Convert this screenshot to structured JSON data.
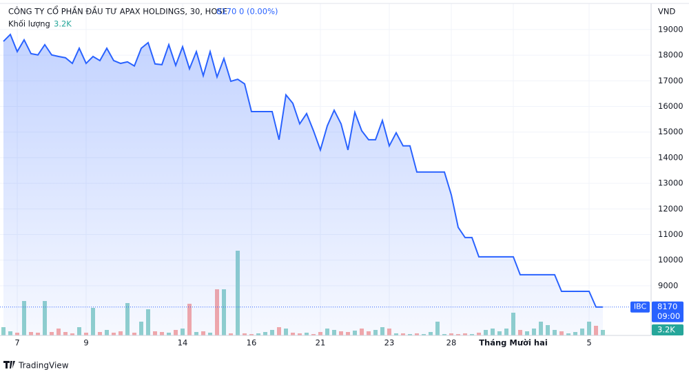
{
  "chart_data": {
    "type": "line",
    "title": "CÔNG TY CỔ PHẦN ĐẦU TƯ APAX HOLDINGS, 30, HOSE",
    "change_label": "0 (0.00%)",
    "currency": "VND",
    "symbol": "IBC",
    "time_label": "09:00",
    "brand": "TradingView",
    "categories": [
      null,
      null,
      "7",
      null,
      null,
      null,
      null,
      null,
      null,
      null,
      null,
      null,
      "9",
      null,
      null,
      null,
      null,
      null,
      null,
      null,
      null,
      null,
      null,
      null,
      null,
      null,
      "14",
      null,
      null,
      null,
      null,
      null,
      null,
      null,
      null,
      null,
      "16",
      null,
      null,
      null,
      null,
      null,
      null,
      null,
      null,
      null,
      "21",
      null,
      null,
      null,
      null,
      null,
      null,
      null,
      null,
      null,
      "23",
      null,
      null,
      null,
      null,
      null,
      null,
      null,
      null,
      "28",
      null,
      null,
      null,
      null,
      null,
      null,
      null,
      null,
      "Tháng Mười hai",
      null,
      null,
      null,
      null,
      null,
      null,
      null,
      null,
      null,
      null,
      "5",
      null,
      null
    ],
    "series": [
      {
        "name": "IBC",
        "color": "#2962ff",
        "values": [
          18540,
          18810,
          18140,
          18600,
          18060,
          18010,
          18410,
          18010,
          17950,
          17900,
          17680,
          18270,
          17680,
          17950,
          17790,
          18270,
          17790,
          17680,
          17740,
          17580,
          18270,
          18490,
          17660,
          17630,
          18410,
          17600,
          18330,
          17470,
          18140,
          17200,
          18140,
          17150,
          17870,
          16980,
          17060,
          16880,
          15800,
          15800,
          15800,
          15800,
          14700,
          16450,
          16120,
          15320,
          15720,
          15050,
          14300,
          15240,
          15850,
          15320,
          14300,
          15770,
          15050,
          14700,
          14700,
          15450,
          14460,
          14970,
          14460,
          14460,
          13440,
          13440,
          13440,
          13440,
          13440,
          12550,
          11280,
          10880,
          10880,
          10130,
          10130,
          10130,
          10130,
          10130,
          10130,
          9430,
          9430,
          9430,
          9430,
          9430,
          9430,
          8780,
          8780,
          8780,
          8780,
          8780,
          8170,
          8170
        ]
      }
    ],
    "volume": {
      "name": "Khối lượng",
      "color_up": "#92d2cc",
      "color_down": "#f7a9a7",
      "ylim": [
        0,
        60000
      ],
      "values": [
        4800,
        2400,
        1600,
        20000,
        2000,
        1600,
        20000,
        2000,
        4000,
        2000,
        1200,
        4800,
        1600,
        16000,
        2000,
        3200,
        1600,
        2400,
        18800,
        1600,
        8000,
        15200,
        2400,
        2000,
        1600,
        3200,
        4000,
        18400,
        2000,
        2400,
        1600,
        26800,
        26800,
        1200,
        49200,
        1200,
        800,
        1200,
        2000,
        3200,
        4800,
        4000,
        1600,
        1200,
        1600,
        800,
        2000,
        4000,
        3200,
        2400,
        2000,
        2800,
        4000,
        2400,
        3200,
        4800,
        4000,
        1200,
        1200,
        800,
        1200,
        800,
        2000,
        8000,
        800,
        1200,
        800,
        1200,
        800,
        1600,
        3200,
        4000,
        2400,
        4000,
        13200,
        3200,
        2400,
        4000,
        8000,
        6000,
        3200,
        2400,
        1200,
        2000,
        4000,
        8000,
        5600,
        3200
      ],
      "value_labels": [
        null,
        null,
        null,
        null,
        null,
        null,
        null,
        null,
        null,
        null,
        null,
        null,
        null,
        null,
        null,
        null,
        null,
        null,
        null,
        null,
        null,
        null,
        null,
        null,
        null,
        null,
        null,
        null,
        null,
        null,
        null,
        null,
        null,
        null,
        null,
        null,
        null,
        null,
        null,
        null,
        null,
        null,
        null,
        null,
        null,
        null,
        null,
        null,
        null,
        null,
        null,
        null,
        null,
        null,
        null,
        null,
        null,
        null,
        null,
        null,
        null,
        null,
        null,
        null,
        null,
        null,
        null,
        null,
        null,
        null,
        null,
        null,
        null,
        null,
        null,
        null,
        null,
        null,
        null,
        null,
        null,
        null,
        null,
        null,
        null,
        null,
        null,
        "3.2K"
      ]
    },
    "ylim": [
      7060,
      20020
    ],
    "yticks": [
      9000,
      10000,
      11000,
      12000,
      13000,
      14000,
      15000,
      16000,
      17000,
      18000,
      19000
    ],
    "grid": true
  }
}
